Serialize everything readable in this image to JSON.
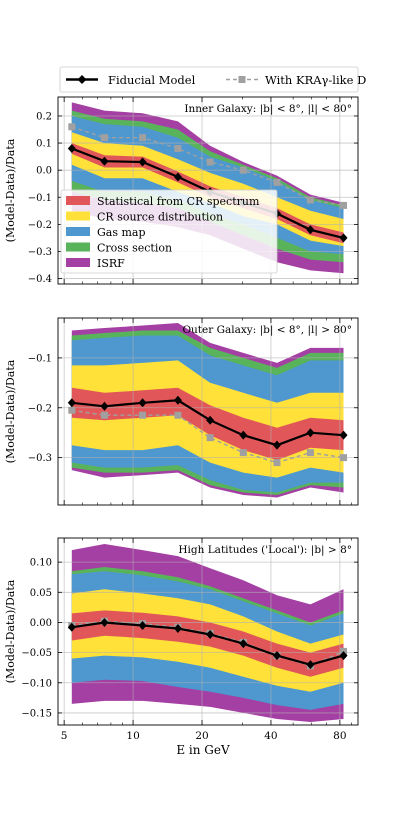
{
  "legend_top": {
    "fiducial": "Fiducial Model",
    "kra": "With KRAγ-like D"
  },
  "band_legend": [
    {
      "key": "stat",
      "label": "Statistical from CR spectrum",
      "color": "#e15759"
    },
    {
      "key": "src",
      "label": "CR source distribution",
      "color": "#ffe13a"
    },
    {
      "key": "gas",
      "label": "Gas map",
      "color": "#4e98cf"
    },
    {
      "key": "xs",
      "label": "Cross section",
      "color": "#59b35a"
    },
    {
      "key": "isrf",
      "label": "ISRF",
      "color": "#a43fa3"
    }
  ],
  "colors": {
    "fiducial": "#000000",
    "kra": "#a0a0a0"
  },
  "xlabel": "E in GeV",
  "chart_data": [
    {
      "type": "line",
      "title": "Inner Galaxy: |b| < 8°, |l| < 80°",
      "ylabel": "(Model-Data)/Data",
      "xscale": "log",
      "xlim": [
        4.7,
        96
      ],
      "ylim": [
        -0.42,
        0.27
      ],
      "yticks": [
        -0.4,
        -0.3,
        -0.2,
        -0.1,
        0.0,
        0.1,
        0.2
      ],
      "ytick_labels": [
        "−0.4",
        "−0.3",
        "−0.2",
        "−0.1",
        "0.0",
        "0.1",
        "0.2"
      ],
      "x": [
        5.4,
        7.5,
        11,
        15.7,
        21.7,
        30.3,
        42.5,
        59.5,
        83
      ],
      "fiducial": [
        0.08,
        0.033,
        0.03,
        -0.025,
        -0.08,
        -0.12,
        -0.16,
        -0.22,
        -0.25
      ],
      "kra": [
        0.16,
        0.12,
        0.12,
        0.08,
        0.03,
        0.0,
        -0.045,
        -0.11,
        -0.13
      ],
      "bands": {
        "isrf": {
          "upper": [
            0.25,
            0.22,
            0.21,
            0.18,
            0.09,
            0.03,
            -0.02,
            -0.09,
            -0.12
          ],
          "lower": [
            -0.15,
            -0.18,
            -0.19,
            -0.21,
            -0.24,
            -0.29,
            -0.34,
            -0.37,
            -0.38
          ]
        },
        "xs": {
          "upper": [
            0.22,
            0.19,
            0.18,
            0.15,
            0.07,
            0.02,
            -0.03,
            -0.1,
            -0.13
          ],
          "lower": [
            -0.08,
            -0.11,
            -0.12,
            -0.14,
            -0.19,
            -0.24,
            -0.29,
            -0.33,
            -0.34
          ]
        },
        "gas": {
          "upper": [
            0.2,
            0.17,
            0.16,
            0.12,
            0.05,
            0.01,
            -0.04,
            -0.11,
            -0.14
          ],
          "lower": [
            -0.04,
            -0.08,
            -0.08,
            -0.11,
            -0.16,
            -0.2,
            -0.25,
            -0.3,
            -0.31
          ]
        },
        "src": {
          "upper": [
            0.14,
            0.1,
            0.09,
            0.04,
            -0.01,
            -0.05,
            -0.1,
            -0.15,
            -0.18
          ],
          "lower": [
            0.02,
            -0.03,
            -0.03,
            -0.08,
            -0.12,
            -0.17,
            -0.2,
            -0.26,
            -0.28
          ]
        },
        "stat": {
          "upper": [
            0.1,
            0.055,
            0.05,
            -0.005,
            -0.06,
            -0.1,
            -0.14,
            -0.2,
            -0.23
          ],
          "lower": [
            0.06,
            0.01,
            0.01,
            -0.045,
            -0.1,
            -0.14,
            -0.18,
            -0.24,
            -0.27
          ]
        }
      }
    },
    {
      "type": "line",
      "title": "Outer Galaxy: |b| < 8°, |l| > 80°",
      "ylabel": "(Model-Data)/Data",
      "xscale": "log",
      "xlim": [
        4.7,
        96
      ],
      "ylim": [
        -0.395,
        -0.02
      ],
      "yticks": [
        -0.3,
        -0.2,
        -0.1
      ],
      "ytick_labels": [
        "−0.3",
        "−0.2",
        "−0.1"
      ],
      "x": [
        5.4,
        7.5,
        11,
        15.7,
        21.7,
        30.3,
        42.5,
        59.5,
        83
      ],
      "fiducial": [
        -0.19,
        -0.197,
        -0.19,
        -0.185,
        -0.225,
        -0.255,
        -0.275,
        -0.25,
        -0.255
      ],
      "kra": [
        -0.205,
        -0.215,
        -0.215,
        -0.215,
        -0.26,
        -0.29,
        -0.31,
        -0.29,
        -0.3
      ],
      "bands": {
        "isrf": {
          "upper": [
            -0.045,
            -0.04,
            -0.035,
            -0.03,
            -0.07,
            -0.09,
            -0.11,
            -0.08,
            -0.08
          ],
          "lower": [
            -0.325,
            -0.34,
            -0.335,
            -0.33,
            -0.36,
            -0.375,
            -0.38,
            -0.36,
            -0.37
          ]
        },
        "xs": {
          "upper": [
            -0.055,
            -0.05,
            -0.045,
            -0.045,
            -0.08,
            -0.1,
            -0.12,
            -0.09,
            -0.09
          ],
          "lower": [
            -0.32,
            -0.33,
            -0.33,
            -0.325,
            -0.355,
            -0.37,
            -0.375,
            -0.355,
            -0.36
          ]
        },
        "gas": {
          "upper": [
            -0.065,
            -0.06,
            -0.055,
            -0.055,
            -0.095,
            -0.115,
            -0.135,
            -0.105,
            -0.105
          ],
          "lower": [
            -0.31,
            -0.32,
            -0.32,
            -0.315,
            -0.345,
            -0.365,
            -0.37,
            -0.35,
            -0.35
          ]
        },
        "src": {
          "upper": [
            -0.115,
            -0.115,
            -0.11,
            -0.105,
            -0.15,
            -0.17,
            -0.19,
            -0.17,
            -0.17
          ],
          "lower": [
            -0.275,
            -0.285,
            -0.285,
            -0.275,
            -0.31,
            -0.33,
            -0.34,
            -0.32,
            -0.33
          ]
        },
        "stat": {
          "upper": [
            -0.16,
            -0.17,
            -0.165,
            -0.16,
            -0.195,
            -0.22,
            -0.24,
            -0.22,
            -0.225
          ],
          "lower": [
            -0.22,
            -0.225,
            -0.22,
            -0.215,
            -0.255,
            -0.285,
            -0.305,
            -0.28,
            -0.285
          ]
        }
      }
    },
    {
      "type": "line",
      "title": "High Latitudes ('Local'): |b| > 8°",
      "ylabel": "(Model-Data)/Data",
      "xscale": "log",
      "xlim": [
        4.7,
        96
      ],
      "ylim": [
        -0.17,
        0.14
      ],
      "yticks": [
        -0.15,
        -0.1,
        -0.05,
        0.0,
        0.05,
        0.1
      ],
      "ytick_labels": [
        "−0.15",
        "−0.10",
        "−0.05",
        "0.00",
        "0.05",
        "0.10"
      ],
      "xticks": [
        5,
        10,
        20,
        40,
        80
      ],
      "xtick_labels": [
        "5",
        "10",
        "20",
        "40",
        "80"
      ],
      "x": [
        5.4,
        7.5,
        11,
        15.7,
        21.7,
        30.3,
        42.5,
        59.5,
        83
      ],
      "fiducial": [
        -0.008,
        0.0,
        -0.005,
        -0.01,
        -0.02,
        -0.035,
        -0.055,
        -0.07,
        -0.055
      ],
      "kra": [
        -0.005,
        0.002,
        -0.002,
        -0.008,
        -0.018,
        -0.033,
        -0.055,
        -0.072,
        -0.048
      ],
      "bands": {
        "isrf": {
          "upper": [
            0.12,
            0.13,
            0.12,
            0.11,
            0.09,
            0.07,
            0.045,
            0.03,
            0.055
          ],
          "lower": [
            -0.135,
            -0.13,
            -0.13,
            -0.135,
            -0.14,
            -0.15,
            -0.16,
            -0.165,
            -0.16
          ]
        },
        "xs": {
          "upper": [
            0.085,
            0.092,
            0.085,
            0.075,
            0.06,
            0.04,
            0.02,
            0.0,
            0.02
          ],
          "lower": [
            -0.095,
            -0.09,
            -0.09,
            -0.1,
            -0.11,
            -0.12,
            -0.13,
            -0.14,
            -0.13
          ]
        },
        "gas": {
          "upper": [
            0.08,
            0.085,
            0.078,
            0.068,
            0.055,
            0.035,
            0.015,
            -0.005,
            0.015
          ],
          "lower": [
            -0.1,
            -0.095,
            -0.097,
            -0.107,
            -0.115,
            -0.125,
            -0.137,
            -0.145,
            -0.135
          ]
        },
        "src": {
          "upper": [
            0.048,
            0.055,
            0.048,
            0.04,
            0.03,
            0.01,
            -0.015,
            -0.035,
            -0.02
          ],
          "lower": [
            -0.06,
            -0.055,
            -0.058,
            -0.065,
            -0.075,
            -0.09,
            -0.105,
            -0.115,
            -0.1
          ]
        },
        "stat": {
          "upper": [
            0.015,
            0.02,
            0.016,
            0.01,
            0.0,
            -0.015,
            -0.035,
            -0.05,
            -0.035
          ],
          "lower": [
            -0.03,
            -0.022,
            -0.026,
            -0.032,
            -0.04,
            -0.055,
            -0.075,
            -0.09,
            -0.075
          ]
        }
      }
    }
  ]
}
